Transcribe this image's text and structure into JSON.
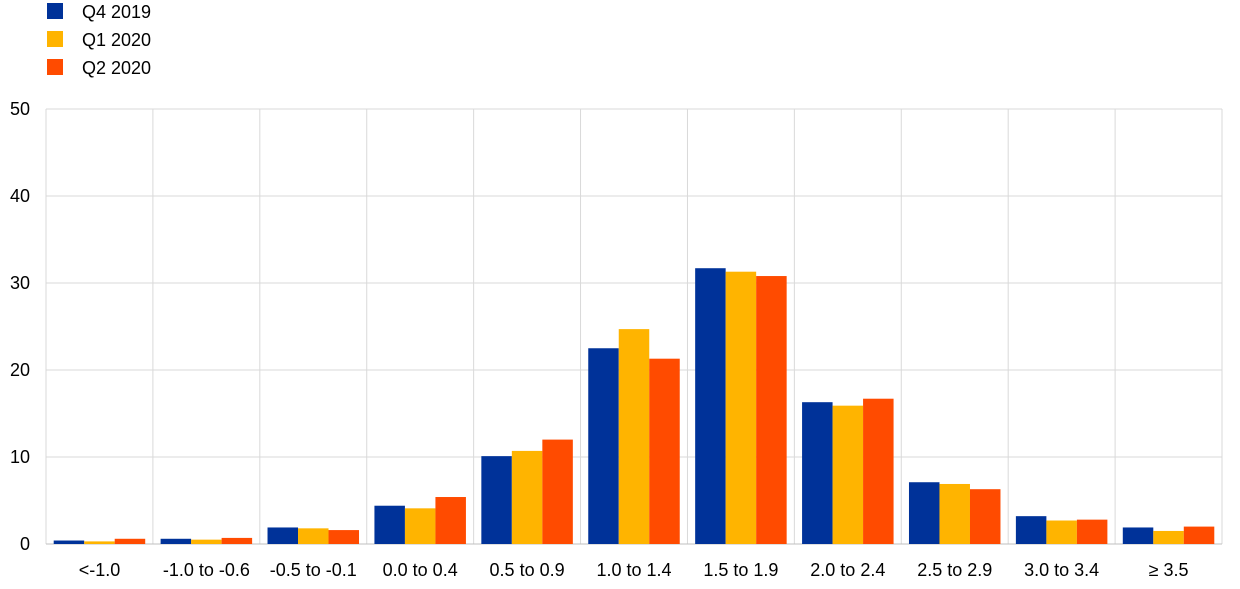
{
  "chart_data": {
    "type": "bar",
    "title": "",
    "xlabel": "",
    "ylabel": "",
    "ylim": [
      0,
      50
    ],
    "yticks": [
      0,
      10,
      20,
      30,
      40,
      50
    ],
    "grid": true,
    "legend_position": "top-left",
    "categories": [
      "<-1.0",
      "-1.0 to -0.6",
      "-0.5 to -0.1",
      "0.0 to 0.4",
      "0.5 to 0.9",
      "1.0 to 1.4",
      "1.5 to 1.9",
      "2.0 to 2.4",
      "2.5 to 2.9",
      "3.0 to 3.4",
      "≥ 3.5"
    ],
    "series": [
      {
        "name": "Q4 2019",
        "color": "#003299",
        "values": [
          0.4,
          0.6,
          1.9,
          4.4,
          10.1,
          22.5,
          31.7,
          16.3,
          7.1,
          3.2,
          1.9
        ]
      },
      {
        "name": "Q1 2020",
        "color": "#FFB400",
        "values": [
          0.3,
          0.5,
          1.8,
          4.1,
          10.7,
          24.7,
          31.3,
          15.9,
          6.9,
          2.7,
          1.5
        ]
      },
      {
        "name": "Q2 2020",
        "color": "#FF4B00",
        "values": [
          0.6,
          0.7,
          1.6,
          5.4,
          12.0,
          21.3,
          30.8,
          16.7,
          6.3,
          2.8,
          2.0
        ]
      }
    ]
  }
}
